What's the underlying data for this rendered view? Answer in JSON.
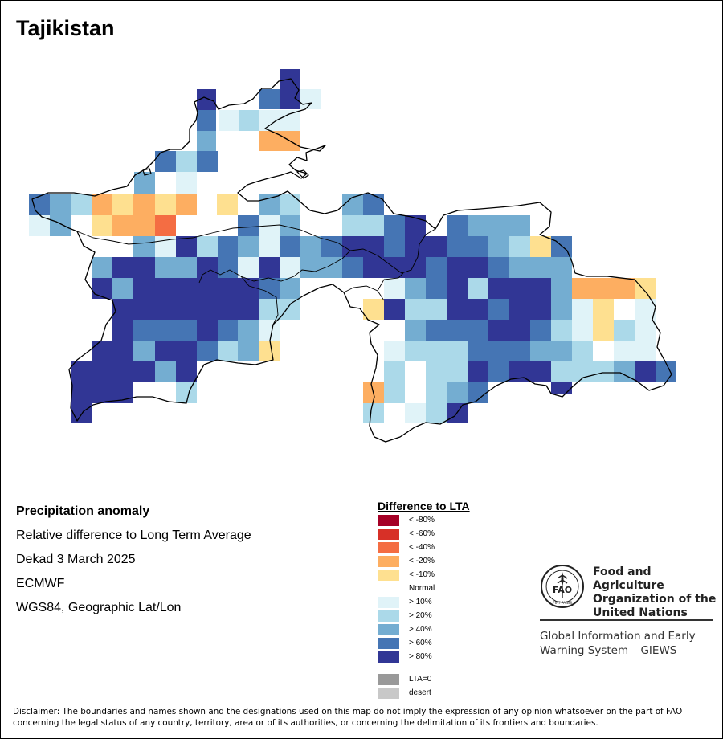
{
  "map": {
    "title": "Tajikistan",
    "grid": {
      "rows": [
        "..........nn....",
        "..........4.n5n1",
        "........1142",
        "........41121131",
        "1..........22...",
        "........3324",
        "........2....1..12",
        "............55.52..",
        "3311555.6552....3.33............n4.....2.5",
        "..3335555............3n..2441.3n...3.2...c",
        "111.11.2...1.5.1.11n2.................e1.....",
        "3.......",
        "3.",
        "n.111",
        "........1.4.......n..1.",
        "..............3..222"
      ]
    },
    "colors": {
      "<-80": "#a50026",
      "<-60": "#d73027",
      "<-40": "#f46d43",
      "<-20": "#fdae61",
      "<-10": "#fee090",
      "normal": "#ffffff",
      ">10": "#e0f3f8",
      ">20": "#abd9e9",
      ">40": "#74add1",
      ">60": "#4575b4",
      ">80": "#313695",
      "lta0": "#999999",
      "desert": "#c8c8c8"
    }
  },
  "info": {
    "line1": "Precipitation anomaly",
    "line2": "Relative difference to Long Term Average",
    "line3": "Dekad 3 March 2025",
    "line4": "ECMWF",
    "line5": "WGS84, Geographic Lat/Lon"
  },
  "legend": {
    "title": "Difference to LTA",
    "items": [
      {
        "label": "< -80%",
        "color": "#a50026"
      },
      {
        "label": "< -60%",
        "color": "#d73027"
      },
      {
        "label": "< -40%",
        "color": "#f46d43"
      },
      {
        "label": "< -20%",
        "color": "#fdae61"
      },
      {
        "label": "< -10%",
        "color": "#fee090"
      },
      {
        "label": "Normal",
        "color": "#ffffff"
      },
      {
        "label": "> 10%",
        "color": "#e0f3f8"
      },
      {
        "label": "> 20%",
        "color": "#abd9e9"
      },
      {
        "label": "> 40%",
        "color": "#74add1"
      },
      {
        "label": "> 60%",
        "color": "#4575b4"
      },
      {
        "label": "> 80%",
        "color": "#313695"
      },
      {
        "label": "LTA=0",
        "color": "#999999"
      },
      {
        "label": "desert",
        "color": "#c8c8c8"
      }
    ]
  },
  "fao": {
    "logo_letters": "FAO",
    "logo_motto": "FIAT PANIS",
    "org_name": "Food and Agriculture Organization of the United Nations",
    "giews": "Global Information and Early Warning System – GIEWS"
  },
  "disclaimer": "Disclaimer: The boundaries and names shown and the designations used on this map do not imply the expression of any opinion whatsoever on the part of FAO concerning the legal status of any country, territory, area or of its authorities, or concerning the delimitation of its frontiers and boundaries."
}
